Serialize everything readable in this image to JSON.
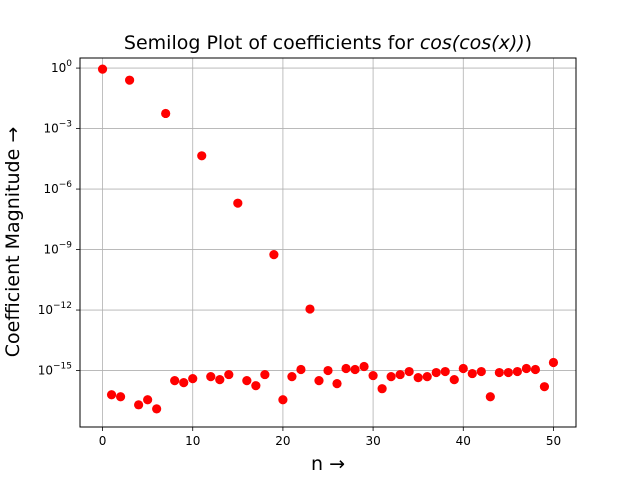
{
  "chart_data": {
    "type": "scatter",
    "title_prefix": "Semilog Plot of coefficients for ",
    "title_math": "cos(cos(x))",
    "title_close": ")",
    "xlabel": "n →",
    "ylabel": "Coefficient Magnitude →",
    "xlim": [
      -2.5,
      52.5
    ],
    "ylim_log10": [
      -17.8,
      0.5
    ],
    "yscale": "log",
    "grid": true,
    "marker_color": "#ff0000",
    "x_ticks": [
      "0",
      "10",
      "20",
      "30",
      "40",
      "50"
    ],
    "y_ticks": [
      {
        "base": "10",
        "exp": "0"
      },
      {
        "base": "10",
        "exp": "−3"
      },
      {
        "base": "10",
        "exp": "−6"
      },
      {
        "base": "10",
        "exp": "−9"
      },
      {
        "base": "10",
        "exp": "−12"
      },
      {
        "base": "10",
        "exp": "−15"
      }
    ],
    "x_tick_values": [
      0,
      10,
      20,
      30,
      40,
      50
    ],
    "y_tick_values": [
      0,
      -3,
      -6,
      -9,
      -12,
      -15
    ],
    "x": [
      0,
      1,
      2,
      3,
      4,
      5,
      6,
      7,
      8,
      9,
      10,
      11,
      12,
      13,
      14,
      15,
      16,
      17,
      18,
      19,
      20,
      21,
      22,
      23,
      24,
      25,
      26,
      27,
      28,
      29,
      30,
      31,
      32,
      33,
      34,
      35,
      36,
      37,
      38,
      39,
      40,
      41,
      42,
      43,
      44,
      45,
      46,
      47,
      48,
      49,
      50
    ],
    "y_log10": [
      -0.05,
      -16.2,
      -16.3,
      -0.6,
      -16.7,
      -16.45,
      -16.9,
      -2.25,
      -15.5,
      -15.6,
      -15.4,
      -4.35,
      -15.3,
      -15.45,
      -15.2,
      -6.7,
      -15.5,
      -15.75,
      -15.2,
      -9.25,
      -16.45,
      -15.3,
      -14.95,
      -11.95,
      -15.5,
      -15.0,
      -15.65,
      -14.9,
      -14.95,
      -14.8,
      -15.25,
      -15.9,
      -15.3,
      -15.2,
      -15.05,
      -15.35,
      -15.3,
      -15.1,
      -15.05,
      -15.45,
      -14.9,
      -15.15,
      -15.05,
      -16.3,
      -15.1,
      -15.1,
      -15.05,
      -14.9,
      -14.95,
      -15.8,
      -14.6
    ]
  }
}
